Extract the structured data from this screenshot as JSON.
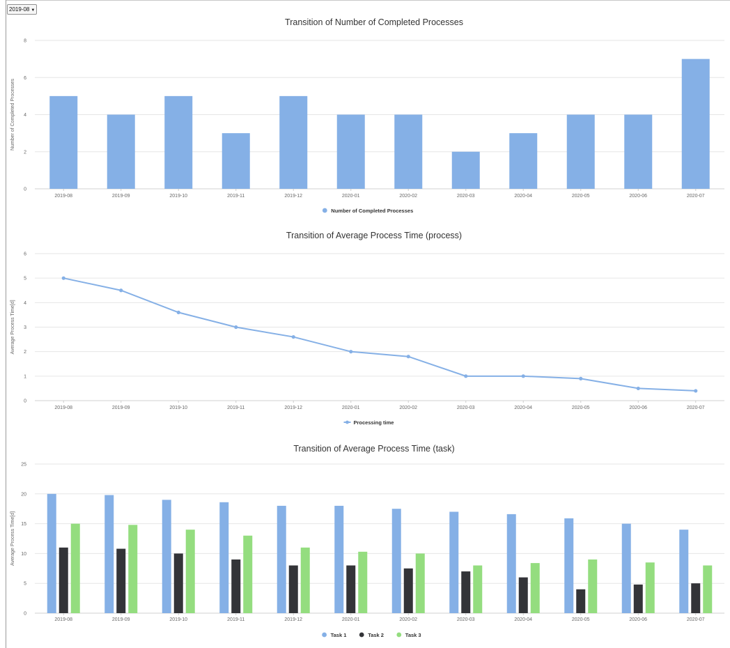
{
  "period_select": {
    "value": "2019-08"
  },
  "colors": {
    "task1": "#85b0e6",
    "task2": "#333438",
    "task3": "#94dd7f",
    "process": "#85b0e6",
    "grid": "#e6e6e6"
  },
  "chart_data": [
    {
      "type": "bar",
      "title": "Transition of Number of Completed Processes",
      "ylabel": "Number of Completed Processes",
      "xlabel": "",
      "categories": [
        "2019-08",
        "2019-09",
        "2019-10",
        "2019-11",
        "2019-12",
        "2020-01",
        "2020-02",
        "2020-03",
        "2020-04",
        "2020-05",
        "2020-06",
        "2020-07"
      ],
      "series": [
        {
          "name": "Number of Completed Processes",
          "values": [
            5,
            4,
            5,
            3,
            5,
            4,
            4,
            2,
            3,
            4,
            4,
            7
          ]
        }
      ],
      "ylim": [
        0,
        8
      ],
      "yticks": [
        0,
        2,
        4,
        6,
        8
      ],
      "grid": true,
      "legend": "bottom-center"
    },
    {
      "type": "line",
      "title": "Transition of Average Process Time (process)",
      "ylabel": "Average Process Time[d]",
      "xlabel": "",
      "categories": [
        "2019-08",
        "2019-09",
        "2019-10",
        "2019-11",
        "2019-12",
        "2020-01",
        "2020-02",
        "2020-03",
        "2020-04",
        "2020-05",
        "2020-06",
        "2020-07"
      ],
      "series": [
        {
          "name": "Processing time",
          "values": [
            5.0,
            4.5,
            3.6,
            3.0,
            2.6,
            2.0,
            1.8,
            1.0,
            1.0,
            0.9,
            0.5,
            0.4
          ]
        }
      ],
      "ylim": [
        0,
        6
      ],
      "yticks": [
        0,
        1,
        2,
        3,
        4,
        5,
        6
      ],
      "grid": true,
      "legend": "bottom-center"
    },
    {
      "type": "bar",
      "title": "Transition of Average Process Time (task)",
      "ylabel": "Average Process Time[d]",
      "xlabel": "",
      "categories": [
        "2019-08",
        "2019-09",
        "2019-10",
        "2019-11",
        "2019-12",
        "2020-01",
        "2020-02",
        "2020-03",
        "2020-04",
        "2020-05",
        "2020-06",
        "2020-07"
      ],
      "series": [
        {
          "name": "Task 1",
          "values": [
            20,
            19.8,
            19,
            18.6,
            18,
            18,
            17.5,
            17,
            16.6,
            15.9,
            15,
            14
          ]
        },
        {
          "name": "Task 2",
          "values": [
            11,
            10.8,
            10,
            9,
            8,
            8,
            7.5,
            7,
            6,
            4,
            4.8,
            5
          ]
        },
        {
          "name": "Task 3",
          "values": [
            15,
            14.8,
            14,
            13,
            11,
            10.3,
            10,
            8,
            8.4,
            9,
            8.5,
            8
          ]
        }
      ],
      "ylim": [
        0,
        25
      ],
      "yticks": [
        0,
        5,
        10,
        15,
        20,
        25
      ],
      "grid": true,
      "legend": "bottom-center"
    }
  ]
}
